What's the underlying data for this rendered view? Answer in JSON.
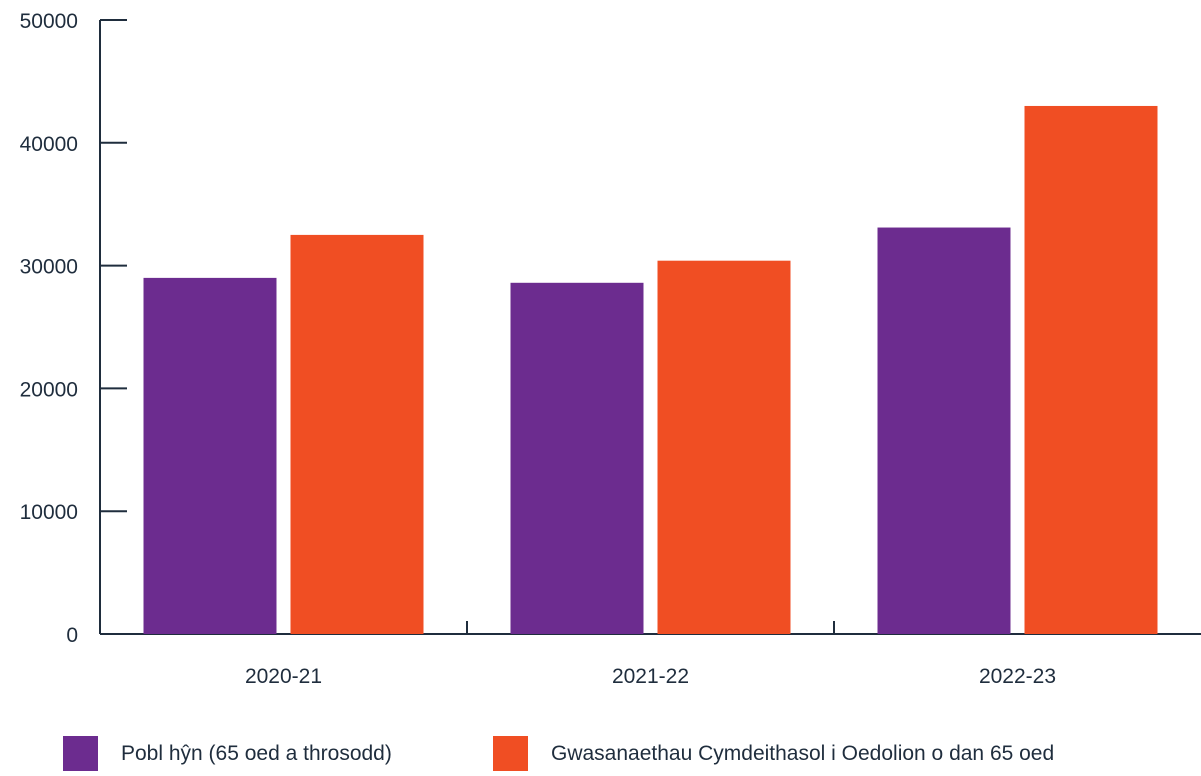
{
  "chart_data": {
    "type": "bar",
    "categories": [
      "2020-21",
      "2021-22",
      "2022-23"
    ],
    "series": [
      {
        "name": "Pobl hŷn (65 oed a throsodd)",
        "color": "#6c2c8f",
        "values": [
          29000,
          28600,
          33100
        ]
      },
      {
        "name": "Gwasanaethau Cymdeithasol i Oedolion o dan 65 oed",
        "color": "#f04e23",
        "values": [
          32500,
          30400,
          43000
        ]
      }
    ],
    "y_ticks": [
      "0",
      "10000",
      "20000",
      "30000",
      "40000",
      "50000"
    ],
    "ylim": [
      0,
      50000
    ],
    "grid": false,
    "legend_position": "bottom"
  }
}
